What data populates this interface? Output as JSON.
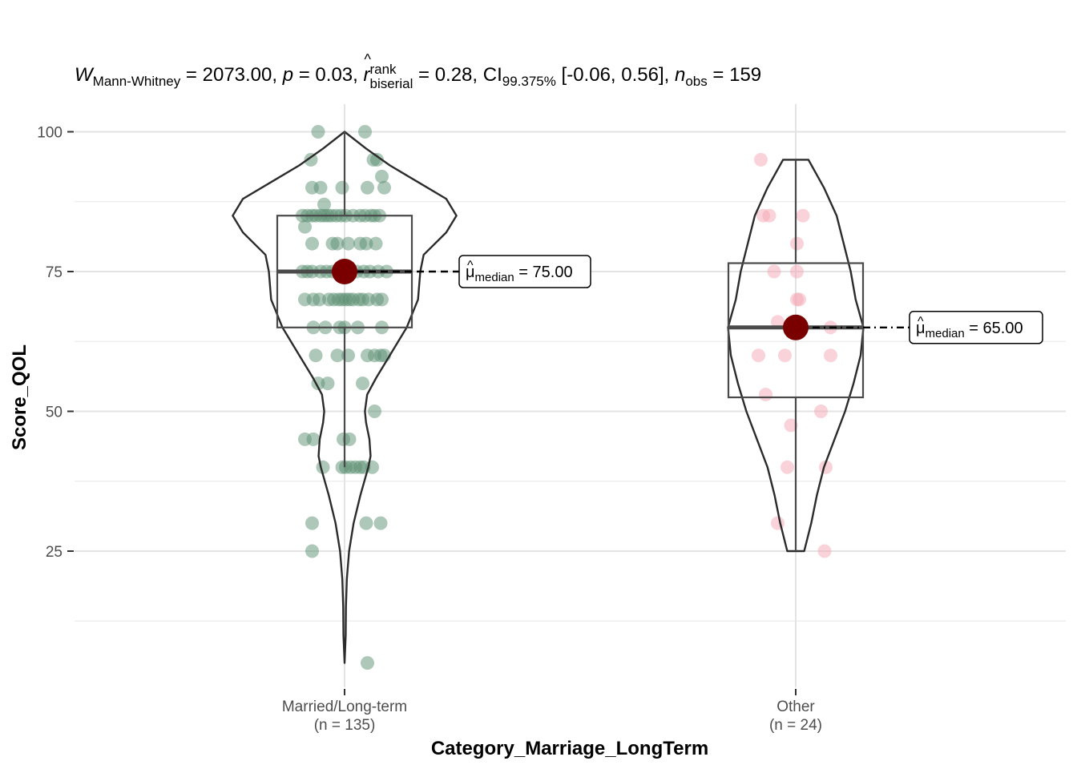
{
  "subtitle": {
    "W": "W",
    "W_sub": "Mann-Whitney",
    "W_value": " = 2073.00, ",
    "p_sym": "p",
    "p_value": " = 0.03, ",
    "r_sym": "r",
    "r_sup": "rank",
    "r_sub": "biserial",
    "r_value": " = 0.28, CI",
    "ci_sub": "99.375%",
    "ci_value": " [-0.06, 0.56], ",
    "n_sym": "n",
    "n_sub": "obs",
    "n_value": " = 159"
  },
  "chart_data": {
    "type": "violin",
    "xlabel": "Category_Marriage_LongTerm",
    "ylabel": "Score_QOL",
    "ylim": [
      0,
      104
    ],
    "yticks": [
      25,
      50,
      75,
      100
    ],
    "categories": [
      "Married/Long-term",
      "Other"
    ],
    "category_counts": [
      "(n = 135)",
      "(n = 24)"
    ],
    "groups": [
      {
        "name": "Married/Long-term",
        "color": "#5b8f72",
        "median": 75,
        "q1": 65,
        "q3": 85,
        "whisker_low": 40,
        "whisker_high": 100,
        "median_label_prefix": "μ",
        "median_label_sub": "median",
        "median_label_value": " = 75.00",
        "violin": [
          [
            5,
            0.0
          ],
          [
            10,
            0.01
          ],
          [
            15,
            0.012
          ],
          [
            20,
            0.02
          ],
          [
            25,
            0.04
          ],
          [
            30,
            0.08
          ],
          [
            35,
            0.14
          ],
          [
            40,
            0.21
          ],
          [
            42,
            0.23
          ],
          [
            45,
            0.22
          ],
          [
            48,
            0.19
          ],
          [
            50,
            0.18
          ],
          [
            53,
            0.2
          ],
          [
            56,
            0.28
          ],
          [
            60,
            0.4
          ],
          [
            65,
            0.55
          ],
          [
            70,
            0.65
          ],
          [
            75,
            0.67
          ],
          [
            78,
            0.7
          ],
          [
            82,
            0.9
          ],
          [
            85,
            0.99
          ],
          [
            88,
            0.9
          ],
          [
            91,
            0.65
          ],
          [
            94,
            0.4
          ],
          [
            97,
            0.19
          ],
          [
            100,
            0.0
          ]
        ],
        "points": [
          [
            100,
            -0.22
          ],
          [
            100,
            0.17
          ],
          [
            95,
            -0.28
          ],
          [
            95,
            0.24
          ],
          [
            95,
            0.27
          ],
          [
            92,
            0.31
          ],
          [
            90,
            -0.27
          ],
          [
            90,
            -0.2
          ],
          [
            90,
            -0.02
          ],
          [
            90,
            0.19
          ],
          [
            90,
            0.33
          ],
          [
            87,
            -0.17
          ],
          [
            85,
            -0.35
          ],
          [
            85,
            -0.31
          ],
          [
            85,
            -0.27
          ],
          [
            85,
            -0.24
          ],
          [
            85,
            -0.2
          ],
          [
            85,
            -0.17
          ],
          [
            85,
            -0.14
          ],
          [
            85,
            -0.11
          ],
          [
            85,
            -0.07
          ],
          [
            85,
            -0.03
          ],
          [
            85,
            0.01
          ],
          [
            85,
            0.07
          ],
          [
            85,
            0.13
          ],
          [
            85,
            0.17
          ],
          [
            85,
            0.22
          ],
          [
            85,
            0.25
          ],
          [
            85,
            0.29
          ],
          [
            83,
            -0.33
          ],
          [
            80,
            -0.27
          ],
          [
            80,
            -0.1
          ],
          [
            80,
            -0.06
          ],
          [
            80,
            0.03
          ],
          [
            80,
            0.13
          ],
          [
            80,
            0.18
          ],
          [
            80,
            0.26
          ],
          [
            75,
            -0.35
          ],
          [
            75,
            -0.31
          ],
          [
            75,
            -0.27
          ],
          [
            75,
            -0.2
          ],
          [
            75,
            -0.15
          ],
          [
            75,
            -0.1
          ],
          [
            75,
            -0.05
          ],
          [
            75,
            0.05
          ],
          [
            75,
            0.1
          ],
          [
            75,
            0.16
          ],
          [
            75,
            0.21
          ],
          [
            75,
            0.28
          ],
          [
            75,
            0.35
          ],
          [
            70,
            -0.33
          ],
          [
            70,
            -0.26
          ],
          [
            70,
            -0.21
          ],
          [
            70,
            -0.13
          ],
          [
            70,
            -0.09
          ],
          [
            70,
            -0.05
          ],
          [
            70,
            -0.02
          ],
          [
            70,
            0.01
          ],
          [
            70,
            0.04
          ],
          [
            70,
            0.07
          ],
          [
            70,
            0.12
          ],
          [
            70,
            0.15
          ],
          [
            70,
            0.2
          ],
          [
            70,
            0.27
          ],
          [
            70,
            0.31
          ],
          [
            65,
            -0.26
          ],
          [
            65,
            -0.16
          ],
          [
            65,
            -0.04
          ],
          [
            65,
            0.0
          ],
          [
            65,
            0.11
          ],
          [
            65,
            0.31
          ],
          [
            60,
            -0.24
          ],
          [
            60,
            -0.06
          ],
          [
            60,
            0.03
          ],
          [
            60,
            0.19
          ],
          [
            60,
            0.25
          ],
          [
            60,
            0.3
          ],
          [
            60,
            0.33
          ],
          [
            55,
            -0.22
          ],
          [
            55,
            -0.14
          ],
          [
            55,
            0.15
          ],
          [
            50,
            0.25
          ],
          [
            45,
            -0.33
          ],
          [
            45,
            -0.26
          ],
          [
            45,
            -0.01
          ],
          [
            45,
            0.04
          ],
          [
            40,
            -0.18
          ],
          [
            40,
            -0.02
          ],
          [
            40,
            0.01
          ],
          [
            40,
            0.05
          ],
          [
            40,
            0.09
          ],
          [
            40,
            0.13
          ],
          [
            40,
            0.16
          ],
          [
            40,
            0.23
          ],
          [
            30,
            -0.27
          ],
          [
            30,
            0.18
          ],
          [
            30,
            0.3
          ],
          [
            25,
            -0.27
          ],
          [
            5,
            0.19
          ]
        ]
      },
      {
        "name": "Other",
        "color": "#f4a7b4",
        "median": 65,
        "q1": 52.5,
        "q3": 76.5,
        "whisker_low": 25,
        "whisker_high": 95,
        "median_label_prefix": "μ",
        "median_label_sub": "median",
        "median_label_value": " = 65.00",
        "violin": [
          [
            25,
            0.12
          ],
          [
            30,
            0.22
          ],
          [
            35,
            0.3
          ],
          [
            40,
            0.4
          ],
          [
            45,
            0.55
          ],
          [
            50,
            0.7
          ],
          [
            55,
            0.82
          ],
          [
            60,
            0.92
          ],
          [
            65,
            0.96
          ],
          [
            70,
            0.85
          ],
          [
            75,
            0.78
          ],
          [
            80,
            0.68
          ],
          [
            85,
            0.58
          ],
          [
            90,
            0.4
          ],
          [
            95,
            0.18
          ]
        ],
        "points": [
          [
            95,
            -0.29
          ],
          [
            85,
            -0.27
          ],
          [
            85,
            -0.22
          ],
          [
            85,
            0.06
          ],
          [
            80,
            0.01
          ],
          [
            75,
            -0.18
          ],
          [
            75,
            0.01
          ],
          [
            70,
            0.01
          ],
          [
            70,
            0.03
          ],
          [
            66,
            -0.15
          ],
          [
            65,
            0.29
          ],
          [
            60,
            -0.31
          ],
          [
            60,
            -0.09
          ],
          [
            60,
            0.29
          ],
          [
            53,
            -0.25
          ],
          [
            50,
            0.21
          ],
          [
            47.5,
            -0.04
          ],
          [
            40,
            -0.07
          ],
          [
            40,
            0.25
          ],
          [
            30,
            -0.15
          ],
          [
            25,
            0.24
          ]
        ]
      }
    ]
  }
}
